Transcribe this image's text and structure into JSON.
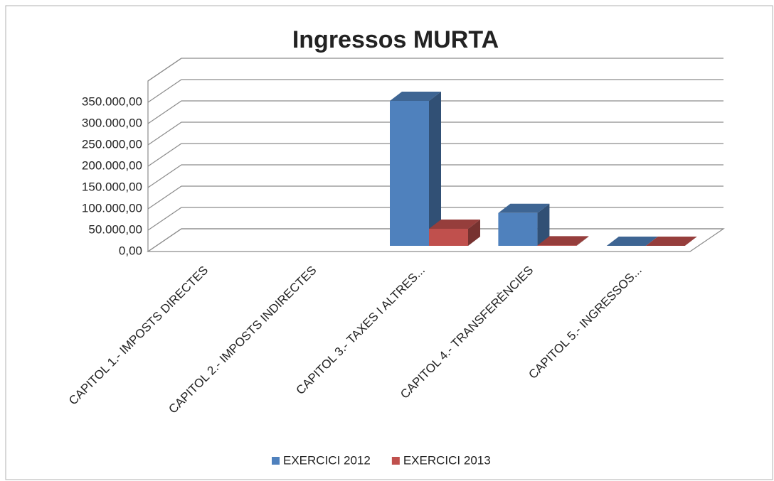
{
  "chart_data": {
    "type": "bar3d",
    "title": "Ingressos MURTA",
    "categories": [
      "CAPITOL 1.- IMPOSTS DIRECTES",
      "CAPITOL 2.- IMPOSTS INDIRECTES",
      "CAPITOL 3.- TAXES I ALTRES...",
      "CAPITOL 4.- TRANSFERÈNCIES",
      "CAPITOL 5.- INGRESSOS..."
    ],
    "series": [
      {
        "name": "EXERCICI 2012",
        "color": "#4f81bd",
        "values": [
          null,
          null,
          340000,
          77000,
          0
        ]
      },
      {
        "name": "EXERCICI 2013",
        "color": "#c0504d",
        "values": [
          null,
          null,
          40000,
          1000,
          0
        ]
      }
    ],
    "ylim": [
      0,
      400000
    ],
    "yticks": [
      {
        "value": 0,
        "label": "0,00"
      },
      {
        "value": 50000,
        "label": "50.000,00"
      },
      {
        "value": 100000,
        "label": "100.000,00"
      },
      {
        "value": 150000,
        "label": "150.000,00"
      },
      {
        "value": 200000,
        "label": "200.000,00"
      },
      {
        "value": 250000,
        "label": "250.000,00"
      },
      {
        "value": 300000,
        "label": "300.000,00"
      },
      {
        "value": 350000,
        "label": "350.000,00"
      }
    ],
    "grid": true,
    "legend": "bottom"
  }
}
